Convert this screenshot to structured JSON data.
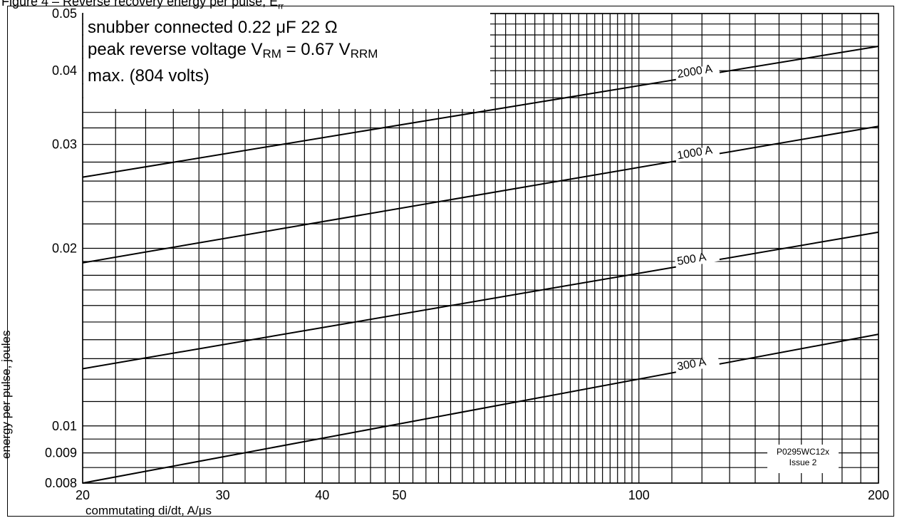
{
  "figure": {
    "caption_prefix": "Figure 4 – Reverse recovery energy per pulse, E",
    "caption_subscript": "rr"
  },
  "notes": {
    "line1": "snubber connected 0.22 μF 22 Ω",
    "line2_prefix": "peak reverse voltage V",
    "line2_sub1": "RM",
    "line2_mid": " = 0.67 V",
    "line2_sub2": "RRM",
    "line3": "max. (804 volts)"
  },
  "code": {
    "line1": "P0295WC12x",
    "line2": "Issue 2"
  },
  "colors": {
    "line": "#000000",
    "background": "#ffffff"
  },
  "chart_data": {
    "type": "line",
    "xlabel": "commutating di/dt, A/μs",
    "ylabel": "energy per pulse, joules",
    "xscale": "log",
    "yscale": "log",
    "xlim": [
      20,
      200
    ],
    "ylim": [
      0.008,
      0.05
    ],
    "grid": true,
    "x_ticks": [
      {
        "value": 20,
        "label": "20"
      },
      {
        "value": 30,
        "label": "30"
      },
      {
        "value": 40,
        "label": "40"
      },
      {
        "value": 50,
        "label": "50"
      },
      {
        "value": 100,
        "label": "100"
      },
      {
        "value": 200,
        "label": "200"
      }
    ],
    "y_ticks": [
      {
        "value": 0.008,
        "label": "0.008"
      },
      {
        "value": 0.009,
        "label": "0.009"
      },
      {
        "value": 0.01,
        "label": "0.01"
      },
      {
        "value": 0.02,
        "label": "0.02"
      },
      {
        "value": 0.03,
        "label": "0.03"
      },
      {
        "value": 0.04,
        "label": "0.04"
      },
      {
        "value": 0.05,
        "label": "0.05"
      }
    ],
    "series": [
      {
        "name": "2000 A",
        "x": [
          20,
          200
        ],
        "y": [
          0.0264,
          0.044
        ]
      },
      {
        "name": "1000 A",
        "x": [
          20,
          200
        ],
        "y": [
          0.0189,
          0.0322
        ]
      },
      {
        "name": "500 A",
        "x": [
          20,
          200
        ],
        "y": [
          0.0125,
          0.0213
        ]
      },
      {
        "name": "300 A",
        "x": [
          20,
          200
        ],
        "y": [
          0.008,
          0.0143
        ]
      }
    ]
  }
}
